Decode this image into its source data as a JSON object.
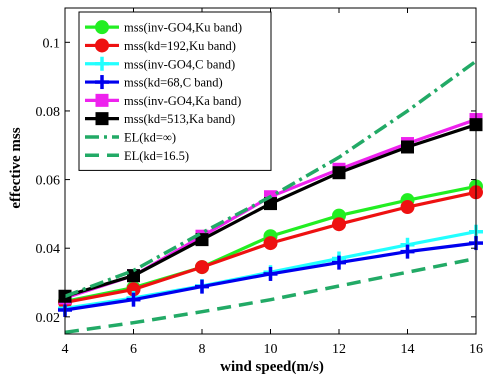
{
  "chart_data": {
    "type": "line",
    "xlabel": "wind speed(m/s)",
    "ylabel": "effective mss",
    "xlim": [
      4,
      16
    ],
    "ylim": [
      0.015,
      0.11
    ],
    "xticks": [
      4,
      6,
      8,
      10,
      12,
      14,
      16
    ],
    "yticks": [
      0.02,
      0.04,
      0.06,
      0.08,
      0.1
    ],
    "xtick_labels": [
      "4",
      "6",
      "8",
      "10",
      "12",
      "14",
      "16"
    ],
    "ytick_labels": [
      "0.02",
      "0.04",
      "0.06",
      "0.08",
      "0.1"
    ],
    "grid": false,
    "legend_position": "top-left",
    "x": [
      4,
      6,
      8,
      10,
      12,
      14,
      16
    ],
    "series": [
      {
        "name": "mss(inv-GO4,Ku band)",
        "values": [
          0.0245,
          0.0285,
          0.0345,
          0.0435,
          0.0495,
          0.054,
          0.058
        ],
        "color": "#22ee22",
        "marker": "circle",
        "style": "solid"
      },
      {
        "name": "mss(kd=192,Ku band)",
        "values": [
          0.0242,
          0.028,
          0.0345,
          0.0415,
          0.047,
          0.052,
          0.0563
        ],
        "color": "#ee1111",
        "marker": "circle",
        "style": "solid"
      },
      {
        "name": "mss(inv-GO4,C band)",
        "values": [
          0.0225,
          0.0255,
          0.029,
          0.033,
          0.037,
          0.041,
          0.0448
        ],
        "color": "#22ffff",
        "marker": "plus",
        "style": "solid"
      },
      {
        "name": "mss(kd=68,C band)",
        "values": [
          0.022,
          0.025,
          0.0288,
          0.0325,
          0.0358,
          0.039,
          0.0415
        ],
        "color": "#0000ee",
        "marker": "plus",
        "style": "solid"
      },
      {
        "name": "mss(inv-GO4,Ka band)",
        "values": [
          0.0255,
          0.032,
          0.0435,
          0.055,
          0.063,
          0.0705,
          0.0775
        ],
        "color": "#ee22ee",
        "marker": "square",
        "style": "solid"
      },
      {
        "name": "mss(kd=513,Ka band)",
        "values": [
          0.026,
          0.032,
          0.0425,
          0.053,
          0.062,
          0.0695,
          0.076
        ],
        "color": "#000000",
        "marker": "square",
        "style": "solid"
      },
      {
        "name": "EL(kd=∞)",
        "values": [
          0.026,
          0.0335,
          0.0445,
          0.055,
          0.0665,
          0.08,
          0.0945
        ],
        "color": "#22aa66",
        "marker": "none",
        "style": "dashdot"
      },
      {
        "name": "EL(kd=16.5)",
        "values": [
          0.0155,
          0.0183,
          0.0215,
          0.025,
          0.029,
          0.033,
          0.037
        ],
        "color": "#22aa66",
        "marker": "none",
        "style": "dashed"
      }
    ]
  }
}
